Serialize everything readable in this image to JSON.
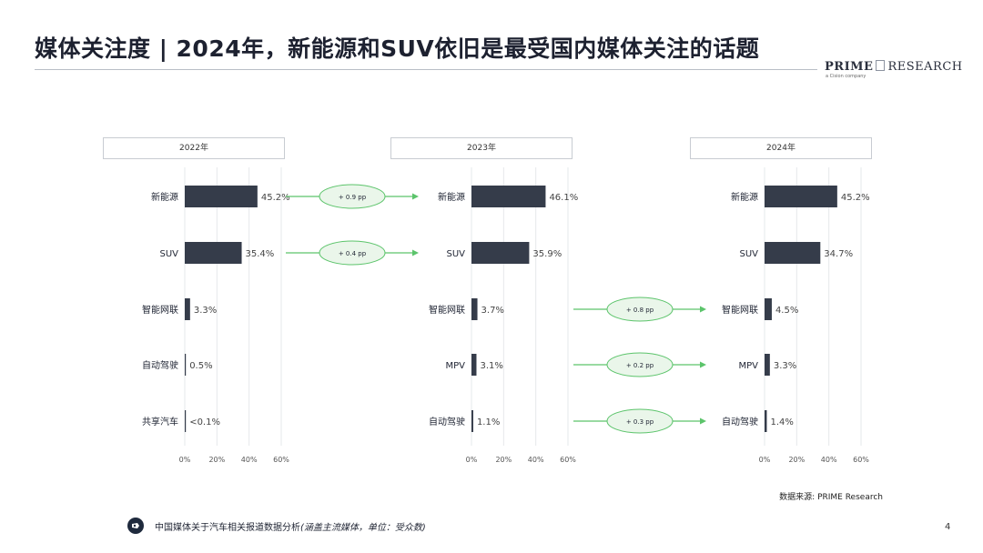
{
  "header": {
    "title": "媒体关注度 | 2024年，新能源和SUV依旧是最受国内媒体关注的话题",
    "logo_bold": "PRIME",
    "logo_rest": "RESEARCH",
    "logo_sub": "a Cision company"
  },
  "chart_data": [
    {
      "type": "bar",
      "orientation": "horizontal",
      "title": "2022年",
      "categories": [
        "新能源",
        "SUV",
        "智能网联",
        "自动驾驶",
        "共享汽车"
      ],
      "values": [
        45.2,
        35.4,
        3.3,
        0.5,
        0.05
      ],
      "labels": [
        "45.2%",
        "35.4%",
        "3.3%",
        "0.5%",
        "<0.1%"
      ],
      "xlim": [
        0,
        60
      ],
      "xticks": [
        "0%",
        "20%",
        "40%",
        "60%"
      ],
      "bar_color": "#353c4a",
      "grid": true
    },
    {
      "type": "bar",
      "orientation": "horizontal",
      "title": "2023年",
      "categories": [
        "新能源",
        "SUV",
        "智能网联",
        "MPV",
        "自动驾驶"
      ],
      "values": [
        46.1,
        35.9,
        3.7,
        3.1,
        1.1
      ],
      "labels": [
        "46.1%",
        "35.9%",
        "3.7%",
        "3.1%",
        "1.1%"
      ],
      "xlim": [
        0,
        60
      ],
      "xticks": [
        "0%",
        "20%",
        "40%",
        "60%"
      ],
      "bar_color": "#353c4a",
      "grid": true
    },
    {
      "type": "bar",
      "orientation": "horizontal",
      "title": "2024年",
      "categories": [
        "新能源",
        "SUV",
        "智能网联",
        "MPV",
        "自动驾驶"
      ],
      "values": [
        45.2,
        34.7,
        4.5,
        3.3,
        1.4
      ],
      "labels": [
        "45.2%",
        "34.7%",
        "4.5%",
        "3.3%",
        "1.4%"
      ],
      "xlim": [
        0,
        60
      ],
      "xticks": [
        "0%",
        "20%",
        "40%",
        "60%"
      ],
      "bar_color": "#353c4a",
      "grid": true
    }
  ],
  "changes": [
    {
      "between": "2022年-2023年",
      "row": 0,
      "label": "+ 0.9 pp"
    },
    {
      "between": "2022年-2023年",
      "row": 1,
      "label": "+ 0.4 pp"
    },
    {
      "between": "2023年-2024年",
      "row": 2,
      "label": "+ 0.8 pp"
    },
    {
      "between": "2023年-2024年",
      "row": 3,
      "label": "+ 0.2 pp"
    },
    {
      "between": "2023年-2024年",
      "row": 4,
      "label": "+ 0.3 pp"
    }
  ],
  "colors": {
    "arrow": "#5cc46b",
    "bubble_border": "#5cc46b",
    "bubble_fill": "#eaf6ea"
  },
  "source": "数据来源: PRIME Research",
  "footer": {
    "text_main": "中国媒体关于汽车相关报道数据分析",
    "text_italic": "(涵盖主流媒体，单位：受众数)"
  },
  "page_number": "4"
}
